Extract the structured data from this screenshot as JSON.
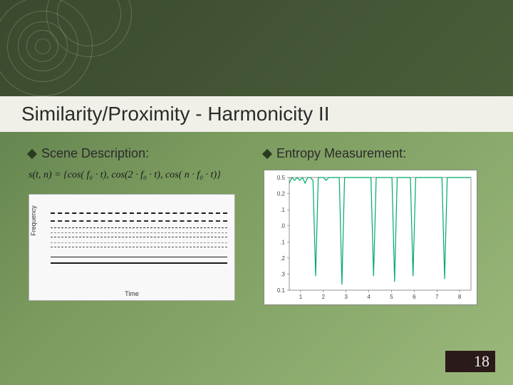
{
  "slide": {
    "title": "Similarity/Proximity - Harmonicity II",
    "page_number": "18",
    "colors": {
      "bg_dark": "#3a4a2e",
      "bg_mid": "#6a8a52",
      "bg_light": "#9ab87a",
      "title_bar": "#f0f0e8",
      "diamond": "#2a3a20",
      "page_box": "#2a1a1a"
    }
  },
  "left": {
    "bullet": "Scene Description:",
    "formula": "s(t, n) = {cos( f₀ · t), cos(2 · f₀ · t), cos( n · f₀ · t)}",
    "spectrogram": {
      "ylabel": "Frequency",
      "xlabel": "Time",
      "lines": [
        {
          "y": 10,
          "style": "dashed",
          "w": 2.5,
          "c": "#1a1a1a"
        },
        {
          "y": 20,
          "style": "dashed",
          "w": 2,
          "c": "#2a2a2a"
        },
        {
          "y": 30,
          "style": "dashed",
          "w": 1.8,
          "c": "#333"
        },
        {
          "y": 37,
          "style": "dashed",
          "w": 1.5,
          "c": "#888"
        },
        {
          "y": 43,
          "style": "dashed",
          "w": 1.5,
          "c": "#444"
        },
        {
          "y": 50,
          "style": "dashed",
          "w": 1.3,
          "c": "#999"
        },
        {
          "y": 56,
          "style": "dashed",
          "w": 1.3,
          "c": "#555"
        },
        {
          "y": 70,
          "style": "solid",
          "w": 1,
          "c": "#1a1a1a"
        },
        {
          "y": 78,
          "style": "solid",
          "w": 2.5,
          "c": "#1a1a1a"
        }
      ]
    }
  },
  "right": {
    "bullet": "Entropy Measurement:",
    "chart": {
      "ylim": [
        0.1,
        0.5
      ],
      "yticks": [
        "0.5",
        "0.2",
        ".1",
        ".0",
        ".1",
        ".2",
        ".3",
        "0.1"
      ],
      "xticks": [
        "1",
        "2",
        "3",
        "4",
        "5",
        "6",
        "7",
        "8"
      ],
      "series_color": "#00aa66",
      "axis_color": "#666",
      "data": [
        0.48,
        0.5,
        0.49,
        0.5,
        0.49,
        0.5,
        0.48,
        0.5,
        0.5,
        0.49,
        0.15,
        0.5,
        0.5,
        0.5,
        0.49,
        0.5,
        0.5,
        0.5,
        0.5,
        0.5,
        0.12,
        0.5,
        0.5,
        0.5,
        0.5,
        0.5,
        0.5,
        0.5,
        0.5,
        0.5,
        0.5,
        0.5,
        0.15,
        0.5,
        0.5,
        0.5,
        0.5,
        0.5,
        0.5,
        0.5,
        0.13,
        0.5,
        0.5,
        0.5,
        0.5,
        0.5,
        0.5,
        0.15,
        0.5,
        0.5,
        0.5,
        0.5,
        0.5,
        0.5,
        0.5,
        0.5,
        0.5,
        0.5,
        0.5,
        0.14,
        0.5,
        0.5,
        0.5,
        0.5,
        0.5,
        0.5,
        0.5,
        0.5,
        0.5,
        0.5
      ]
    }
  }
}
